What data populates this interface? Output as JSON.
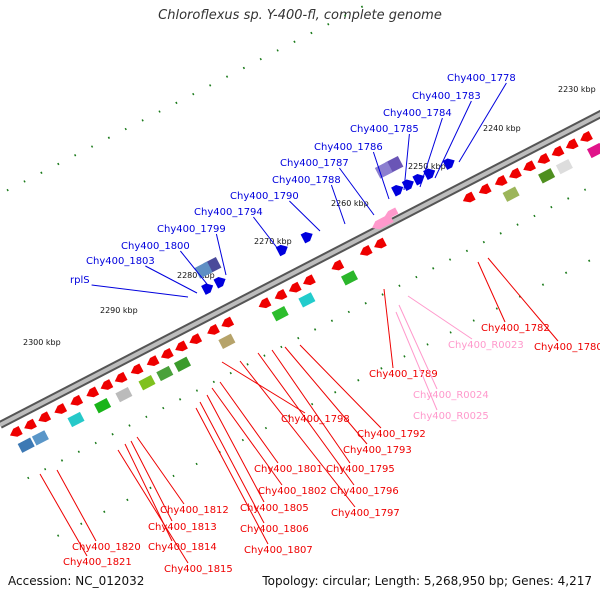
{
  "title": "Chloroflexus sp. Y-400-fl, complete genome",
  "accession": "Accession: NC_012032",
  "summary": "Topology: circular; Length: 5,268,950 bp; Genes: 4,217",
  "colors": {
    "forward": "#0000dd",
    "reverse": "#ee0000",
    "rna": "#ff99cc",
    "backbone": "#8a8a8a",
    "tick": "#1a7a1a"
  },
  "kbp_labels": [
    "2230 kbp",
    "2240 kbp",
    "2250 kbp",
    "2260 kbp",
    "2270 kbp",
    "2280 kbp",
    "2290 kbp",
    "2300 kbp"
  ],
  "forward_genes": [
    "Chy400_1778",
    "Chy400_1783",
    "Chy400_1784",
    "Chy400_1785",
    "Chy400_1786",
    "Chy400_1787",
    "Chy400_1788",
    "Chy400_1790",
    "Chy400_1794",
    "Chy400_1799",
    "Chy400_1800",
    "Chy400_1803",
    "rplS"
  ],
  "reverse_genes": [
    "Chy400_1782",
    "Chy400_1780",
    "Chy400_1789",
    "Chy400_1792",
    "Chy400_1793",
    "Chy400_1795",
    "Chy400_1796",
    "Chy400_1797",
    "Chy400_1798",
    "Chy400_1801",
    "Chy400_1802",
    "Chy400_1805",
    "Chy400_1806",
    "Chy400_1807",
    "Chy400_1812",
    "Chy400_1813",
    "Chy400_1814",
    "Chy400_1815",
    "Chy400_1820",
    "Chy400_1821"
  ],
  "rna_genes": [
    "Chy400_R0023",
    "Chy400_R0024",
    "Chy400_R0025"
  ]
}
